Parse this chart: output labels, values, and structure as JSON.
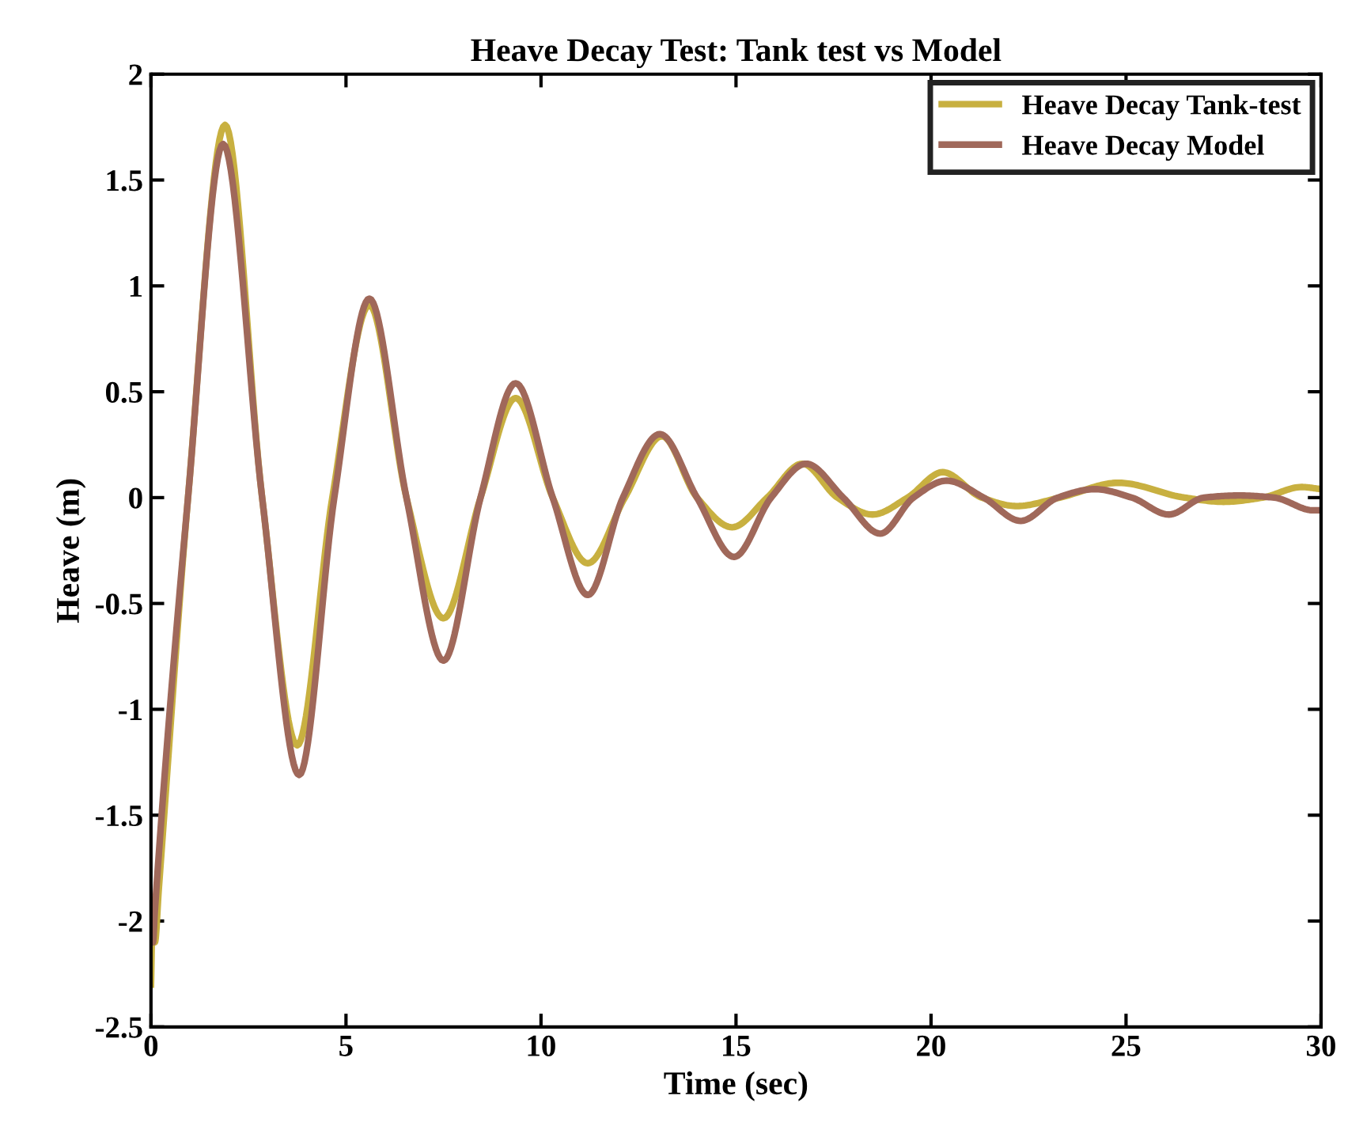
{
  "chart_data": {
    "type": "line",
    "title": "Heave Decay Test: Tank test vs Model",
    "xlabel": "Time (sec)",
    "ylabel": "Heave (m)",
    "xlim": [
      0,
      30
    ],
    "xticks": [
      0,
      5,
      10,
      15,
      20,
      25,
      30
    ],
    "ylim": [
      -2.5,
      2
    ],
    "yticks": [
      -2.5,
      -2,
      -1.5,
      -1,
      -0.5,
      0,
      0.5,
      1,
      1.5,
      2
    ],
    "grid": false,
    "legend": "top right",
    "marker": "none",
    "line_style": "solid",
    "series": [
      {
        "name": "Heave Decay Tank-test",
        "color": "#c8b040",
        "x": [
          0,
          0.05,
          0.1,
          0.2,
          0.95,
          1.9,
          2.85,
          3.75,
          4.65,
          5.6,
          6.55,
          7.5,
          8.45,
          9.35,
          10.3,
          11.2,
          12.15,
          13.1,
          14.0,
          14.9,
          15.8,
          16.7,
          17.6,
          18.5,
          19.4,
          20.3,
          21.3,
          22.2,
          23.3,
          24.8,
          26.5,
          27.5,
          28.5,
          29.5,
          30
        ],
        "values": [
          -2.3,
          -1.9,
          -2.1,
          -1.85,
          0,
          1.76,
          0,
          -1.17,
          0,
          0.91,
          0,
          -0.57,
          0,
          0.47,
          0,
          -0.31,
          0,
          0.29,
          0,
          -0.14,
          0,
          0.16,
          0,
          -0.08,
          0,
          0.12,
          0,
          -0.04,
          0,
          0.07,
          0,
          -0.02,
          0,
          0.05,
          0.04
        ]
      },
      {
        "name": "Heave Decay Model",
        "color": "#a0685a",
        "x": [
          0,
          0.05,
          0.1,
          0.95,
          1.85,
          2.85,
          3.8,
          4.7,
          5.6,
          6.55,
          7.5,
          8.45,
          9.35,
          10.3,
          11.2,
          12.1,
          13.05,
          14.0,
          14.95,
          15.9,
          16.8,
          17.75,
          18.7,
          19.55,
          20.4,
          21.35,
          22.3,
          23.25,
          24.2,
          25.15,
          26.1,
          27.0,
          27.9,
          28.8,
          29.8,
          30
        ],
        "values": [
          -2.05,
          -2.1,
          -1.95,
          0,
          1.67,
          0,
          -1.31,
          0,
          0.94,
          0,
          -0.77,
          0,
          0.54,
          0,
          -0.46,
          0,
          0.3,
          0,
          -0.28,
          0,
          0.16,
          0,
          -0.17,
          0,
          0.08,
          0,
          -0.11,
          0,
          0.04,
          0,
          -0.08,
          0,
          0.01,
          0,
          -0.06,
          -0.06
        ]
      }
    ]
  }
}
